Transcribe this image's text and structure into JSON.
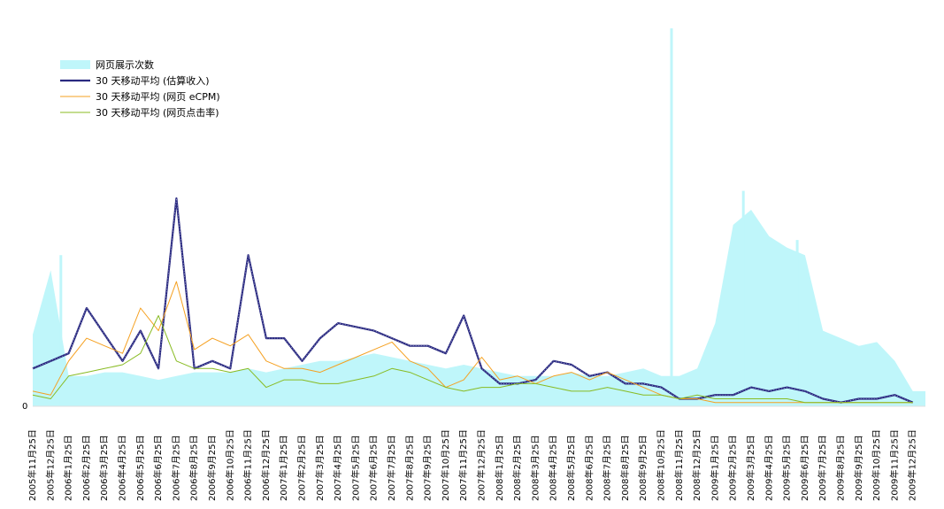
{
  "chart_data": {
    "type": "line",
    "title": "",
    "xlabel": "",
    "ylabel": "",
    "y_tick_labels": [
      "0"
    ],
    "grid": false,
    "legend_position": "top-left",
    "x_tick_labels": [
      "2005年11月25日",
      "2005年12月25日",
      "2006年1月25日",
      "2006年2月25日",
      "2006年3月25日",
      "2006年4月25日",
      "2006年5月25日",
      "2006年6月25日",
      "2006年7月25日",
      "2006年8月25日",
      "2006年9月25日",
      "2006年10月25日",
      "2006年11月25日",
      "2006年12月25日",
      "2007年1月25日",
      "2007年2月25日",
      "2007年3月25日",
      "2007年4月25日",
      "2007年5月25日",
      "2007年6月25日",
      "2007年7月25日",
      "2007年8月25日",
      "2007年9月25日",
      "2007年10月25日",
      "2007年11月25日",
      "2007年12月25日",
      "2008年1月25日",
      "2008年2月25日",
      "2008年3月25日",
      "2008年4月25日",
      "2008年5月25日",
      "2008年6月25日",
      "2008年7月25日",
      "2008年8月25日",
      "2008年9月25日",
      "2008年10月25日",
      "2008年11月25日",
      "2008年12月25日",
      "2009年1月25日",
      "2009年2月25日",
      "2009年3月25日",
      "2009年4月25日",
      "2009年5月25日",
      "2009年6月25日",
      "2009年7月25日",
      "2009年8月25日",
      "2009年9月25日",
      "2009年10月25日",
      "2009年11月25日",
      "2009年12月25日"
    ],
    "x_start_label": "2005年11月25日",
    "x_end_label": "2010年1月15日",
    "y_range": [
      0,
      100
    ],
    "series": [
      {
        "name": "网页展示次数",
        "style": "area",
        "color": "#bff6fa",
        "x_labels": [
          "2005年11月25日",
          "2005年12月25日",
          "2006年1月25日",
          "2006年2月25日",
          "2006年3月25日",
          "2006年4月25日",
          "2006年5月25日",
          "2006年6月25日",
          "2006年7月25日",
          "2006年8月25日",
          "2006年9月25日",
          "2006年10月25日",
          "2006年11月25日",
          "2006年12月25日",
          "2007年1月25日",
          "2007年2月25日",
          "2007年3月25日",
          "2007年4月25日",
          "2007年5月25日",
          "2007年6月25日",
          "2007年7月25日",
          "2007年8月25日",
          "2007年9月25日",
          "2007年10月25日",
          "2007年11月25日",
          "2007年12月25日",
          "2008年1月25日",
          "2008年2月25日",
          "2008年3月25日",
          "2008年4月25日",
          "2008年5月25日",
          "2008年6月25日",
          "2008年7月25日",
          "2008年8月25日",
          "2008年9月25日",
          "2008年10月25日",
          "2008年11月25日",
          "2008年12月25日",
          "2009年1月25日",
          "2009年2月25日",
          "2009年3月25日",
          "2009年4月25日",
          "2009年5月25日",
          "2009年6月25日",
          "2009年7月25日",
          "2009年8月25日",
          "2009年9月25日",
          "2009年10月25日",
          "2009年11月25日",
          "2009年12月25日"
        ],
        "values": [
          19,
          36,
          8,
          8,
          9,
          9,
          8,
          7,
          8,
          9,
          9,
          9,
          10,
          9,
          10,
          11,
          12,
          12,
          13,
          14,
          13,
          12,
          11,
          10,
          11,
          10,
          9,
          8,
          8,
          8,
          9,
          8,
          8,
          9,
          10,
          8,
          8,
          10,
          22,
          48,
          52,
          45,
          42,
          40,
          20,
          18,
          16,
          17,
          12,
          4
        ],
        "spikes": [
          {
            "label": "2005年12月25日",
            "value": 40
          },
          {
            "label": "2008年10月25日",
            "value": 100
          },
          {
            "label": "2009年2月25日",
            "value": 57
          },
          {
            "label": "2009年5月25日",
            "value": 44
          }
        ]
      },
      {
        "name": "30 天移动平均 (估算收入)",
        "style": "line",
        "color": "#2a2a80",
        "x_labels": [
          "2005年11月25日",
          "2005年12月25日",
          "2006年1月25日",
          "2006年2月25日",
          "2006年3月25日",
          "2006年4月25日",
          "2006年5月25日",
          "2006年6月25日",
          "2006年7月25日",
          "2006年8月25日",
          "2006年9月25日",
          "2006年10月25日",
          "2006年11月25日",
          "2006年12月25日",
          "2007年1月25日",
          "2007年2月25日",
          "2007年3月25日",
          "2007年4月25日",
          "2007年5月25日",
          "2007年6月25日",
          "2007年7月25日",
          "2007年8月25日",
          "2007年9月25日",
          "2007年10月25日",
          "2007年11月25日",
          "2007年12月25日",
          "2008年1月25日",
          "2008年2月25日",
          "2008年3月25日",
          "2008年4月25日",
          "2008年5月25日",
          "2008年6月25日",
          "2008年7月25日",
          "2008年8月25日",
          "2008年9月25日",
          "2008年10月25日",
          "2008年11月25日",
          "2008年12月25日",
          "2009年1月25日",
          "2009年2月25日",
          "2009年3月25日",
          "2009年4月25日",
          "2009年5月25日",
          "2009年6月25日",
          "2009年7月25日",
          "2009年8月25日",
          "2009年9月25日",
          "2009年10月25日",
          "2009年11月25日",
          "2009年12月25日"
        ],
        "values": [
          10,
          12,
          14,
          26,
          19,
          12,
          20,
          10,
          55,
          10,
          12,
          10,
          40,
          18,
          18,
          12,
          18,
          22,
          21,
          20,
          18,
          16,
          16,
          14,
          24,
          10,
          6,
          6,
          7,
          12,
          11,
          8,
          9,
          6,
          6,
          5,
          2,
          2,
          3,
          3,
          5,
          4,
          5,
          4,
          2,
          1,
          2,
          2,
          3,
          1
        ]
      },
      {
        "name": "30 天移动平均 (网页 eCPM)",
        "style": "line",
        "color": "#f5a020",
        "x_labels": [
          "2005年11月25日",
          "2005年12月25日",
          "2006年1月25日",
          "2006年2月25日",
          "2006年3月25日",
          "2006年4月25日",
          "2006年5月25日",
          "2006年6月25日",
          "2006年7月25日",
          "2006年8月25日",
          "2006年9月25日",
          "2006年10月25日",
          "2006年11月25日",
          "2006年12月25日",
          "2007年1月25日",
          "2007年2月25日",
          "2007年3月25日",
          "2007年4月25日",
          "2007年5月25日",
          "2007年6月25日",
          "2007年7月25日",
          "2007年8月25日",
          "2007年9月25日",
          "2007年10月25日",
          "2007年11月25日",
          "2007年12月25日",
          "2008年1月25日",
          "2008年2月25日",
          "2008年3月25日",
          "2008年4月25日",
          "2008年5月25日",
          "2008年6月25日",
          "2008年7月25日",
          "2008年8月25日",
          "2008年9月25日",
          "2008年10月25日",
          "2008年11月25日",
          "2008年12月25日",
          "2009年1月25日",
          "2009年2月25日",
          "2009年3月25日",
          "2009年4月25日",
          "2009年5月25日",
          "2009年6月25日",
          "2009年7月25日",
          "2009年8月25日",
          "2009年9月25日",
          "2009年10月25日",
          "2009年11月25日",
          "2009年12月25日"
        ],
        "values": [
          4,
          3,
          12,
          18,
          16,
          14,
          26,
          20,
          33,
          15,
          18,
          16,
          19,
          12,
          10,
          10,
          9,
          11,
          13,
          15,
          17,
          12,
          10,
          5,
          7,
          13,
          7,
          8,
          6,
          8,
          9,
          7,
          9,
          7,
          5,
          3,
          2,
          2,
          1,
          1,
          1,
          1,
          1,
          1,
          1,
          1,
          1,
          1,
          1,
          1
        ]
      },
      {
        "name": "30 天移动平均 (网页点击率)",
        "style": "line",
        "color": "#88bb22",
        "x_labels": [
          "2005年11月25日",
          "2005年12月25日",
          "2006年1月25日",
          "2006年2月25日",
          "2006年3月25日",
          "2006年4月25日",
          "2006年5月25日",
          "2006年6月25日",
          "2006年7月25日",
          "2006年8月25日",
          "2006年9月25日",
          "2006年10月25日",
          "2006年11月25日",
          "2006年12月25日",
          "2007年1月25日",
          "2007年2月25日",
          "2007年3月25日",
          "2007年4月25日",
          "2007年5月25日",
          "2007年6月25日",
          "2007年7月25日",
          "2007年8月25日",
          "2007年9月25日",
          "2007年10月25日",
          "2007年11月25日",
          "2007年12月25日",
          "2008年1月25日",
          "2008年2月25日",
          "2008年3月25日",
          "2008年4月25日",
          "2008年5月25日",
          "2008年6月25日",
          "2008年7月25日",
          "2008年8月25日",
          "2008年9月25日",
          "2008年10月25日",
          "2008年11月25日",
          "2008年12月25日",
          "2009年1月25日",
          "2009年2月25日",
          "2009年3月25日",
          "2009年4月25日",
          "2009年5月25日",
          "2009年6月25日",
          "2009年7月25日",
          "2009年8月25日",
          "2009年9月25日",
          "2009年10月25日",
          "2009年11月25日",
          "2009年12月25日"
        ],
        "values": [
          3,
          2,
          8,
          9,
          10,
          11,
          14,
          24,
          12,
          10,
          10,
          9,
          10,
          5,
          7,
          7,
          6,
          6,
          7,
          8,
          10,
          9,
          7,
          5,
          4,
          5,
          5,
          6,
          6,
          5,
          4,
          4,
          5,
          4,
          3,
          3,
          2,
          3,
          2,
          2,
          2,
          2,
          2,
          1,
          1,
          1,
          1,
          1,
          1,
          1
        ]
      }
    ]
  }
}
